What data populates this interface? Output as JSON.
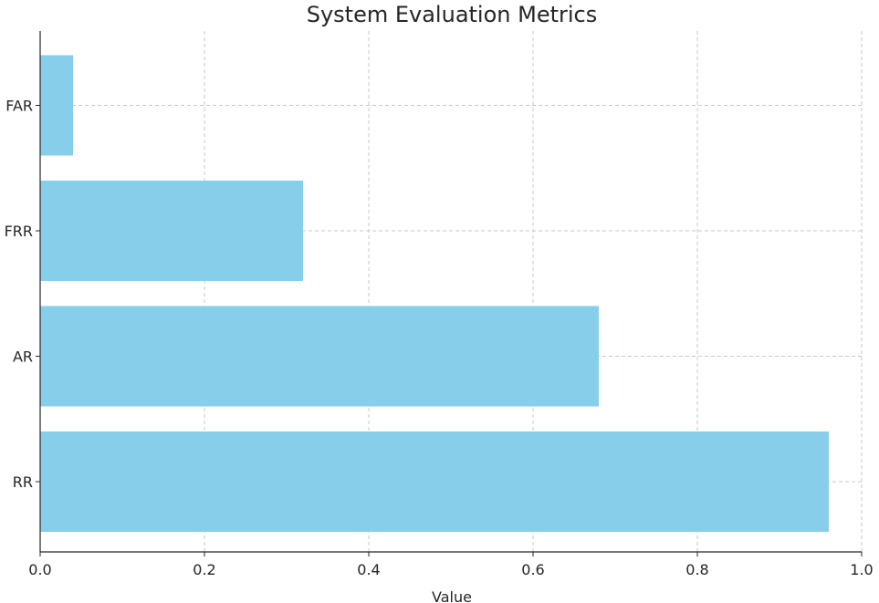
{
  "chart_data": {
    "type": "bar",
    "orientation": "horizontal",
    "title": "System Evaluation Metrics",
    "xlabel": "Value",
    "ylabel": "",
    "categories": [
      "RR",
      "AR",
      "FRR",
      "FAR"
    ],
    "values": [
      0.96,
      0.68,
      0.32,
      0.04
    ],
    "xlim": [
      0.0,
      1.0
    ],
    "x_ticks": [
      "0.0",
      "0.2",
      "0.4",
      "0.6",
      "0.8",
      "1.0"
    ],
    "grid": true,
    "bar_color": "#87CEEB",
    "grid_color": "#c8c8c8",
    "axis_color": "#262626"
  }
}
